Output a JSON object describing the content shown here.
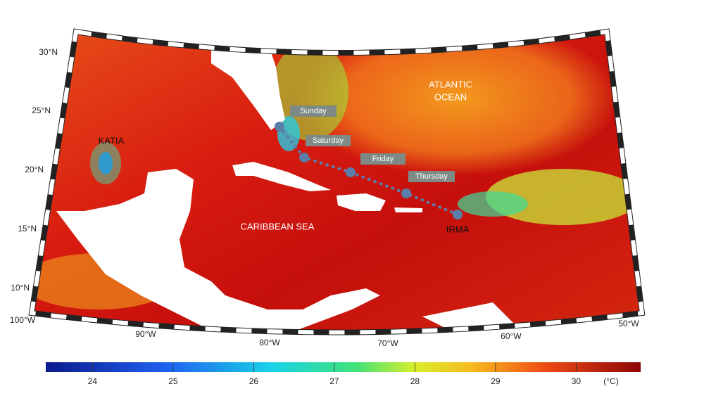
{
  "map": {
    "latitude_labels": [
      "30°N",
      "25°N",
      "20°N",
      "15°N",
      "10°N"
    ],
    "longitude_labels": [
      "100°W",
      "90°W",
      "80°W",
      "70°W",
      "60°W",
      "50°W"
    ],
    "region_labels": {
      "katia": "KATIA",
      "atlantic": [
        "ATLANTIC",
        "OCEAN"
      ],
      "caribbean": "CARIBBEAN SEA",
      "irma": "IRMA"
    },
    "track_days": [
      "Sunday",
      "Saturday",
      "Friday",
      "Thursday"
    ]
  },
  "colorbar": {
    "range": [
      23.42,
      30.8
    ],
    "ticks": [
      24,
      25,
      26,
      27,
      28,
      29,
      30
    ],
    "unit": "(°C)"
  }
}
